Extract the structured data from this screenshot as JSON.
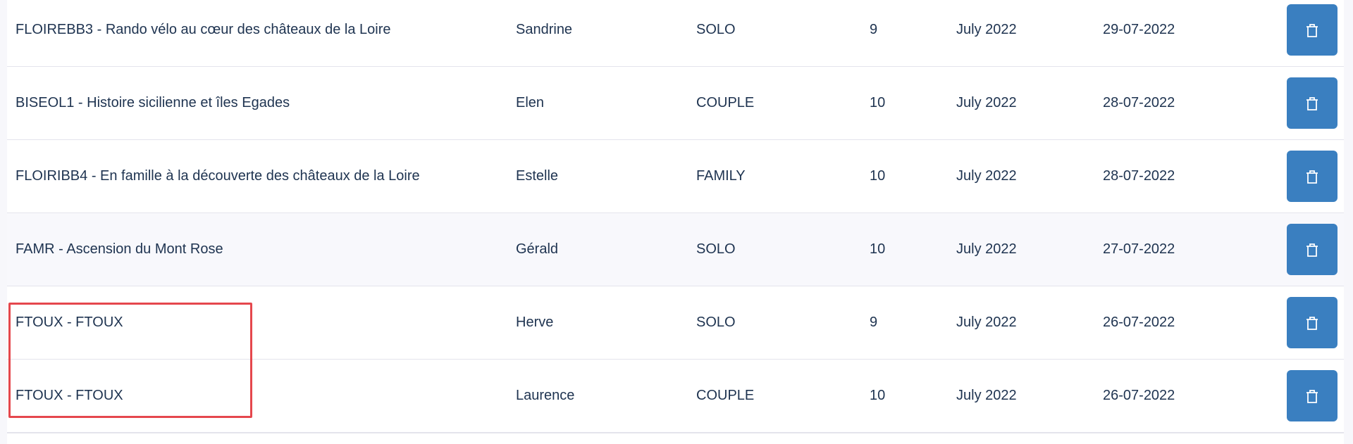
{
  "colors": {
    "accent": "#3a7fc0",
    "text": "#1e3350",
    "highlight": "#e5474d"
  },
  "rows": [
    {
      "trip": "FLOIREBB3 - Rando vélo au cœur des châteaux de la Loire",
      "first_name": "Sandrine",
      "type": "SOLO",
      "count": "9",
      "month": "July 2022",
      "date": "29-07-2022",
      "action_icon": "trash-icon"
    },
    {
      "trip": "BISEOL1 - Histoire sicilienne et îles Egades",
      "first_name": "Elen",
      "type": "COUPLE",
      "count": "10",
      "month": "July 2022",
      "date": "28-07-2022",
      "action_icon": "trash-icon"
    },
    {
      "trip": "FLOIRIBB4 - En famille à la découverte des châteaux de la Loire",
      "first_name": "Estelle",
      "type": "FAMILY",
      "count": "10",
      "month": "July 2022",
      "date": "28-07-2022",
      "action_icon": "trash-icon"
    },
    {
      "trip": "FAMR - Ascension du Mont Rose",
      "first_name": "Gérald",
      "type": "SOLO",
      "count": "10",
      "month": "July 2022",
      "date": "27-07-2022",
      "action_icon": "trash-icon"
    },
    {
      "trip": "FTOUX - FTOUX",
      "first_name": "Herve",
      "type": "SOLO",
      "count": "9",
      "month": "July 2022",
      "date": "26-07-2022",
      "action_icon": "trash-icon"
    },
    {
      "trip": "FTOUX - FTOUX",
      "first_name": "Laurence",
      "type": "COUPLE",
      "count": "10",
      "month": "July 2022",
      "date": "26-07-2022",
      "action_icon": "trash-icon"
    }
  ]
}
